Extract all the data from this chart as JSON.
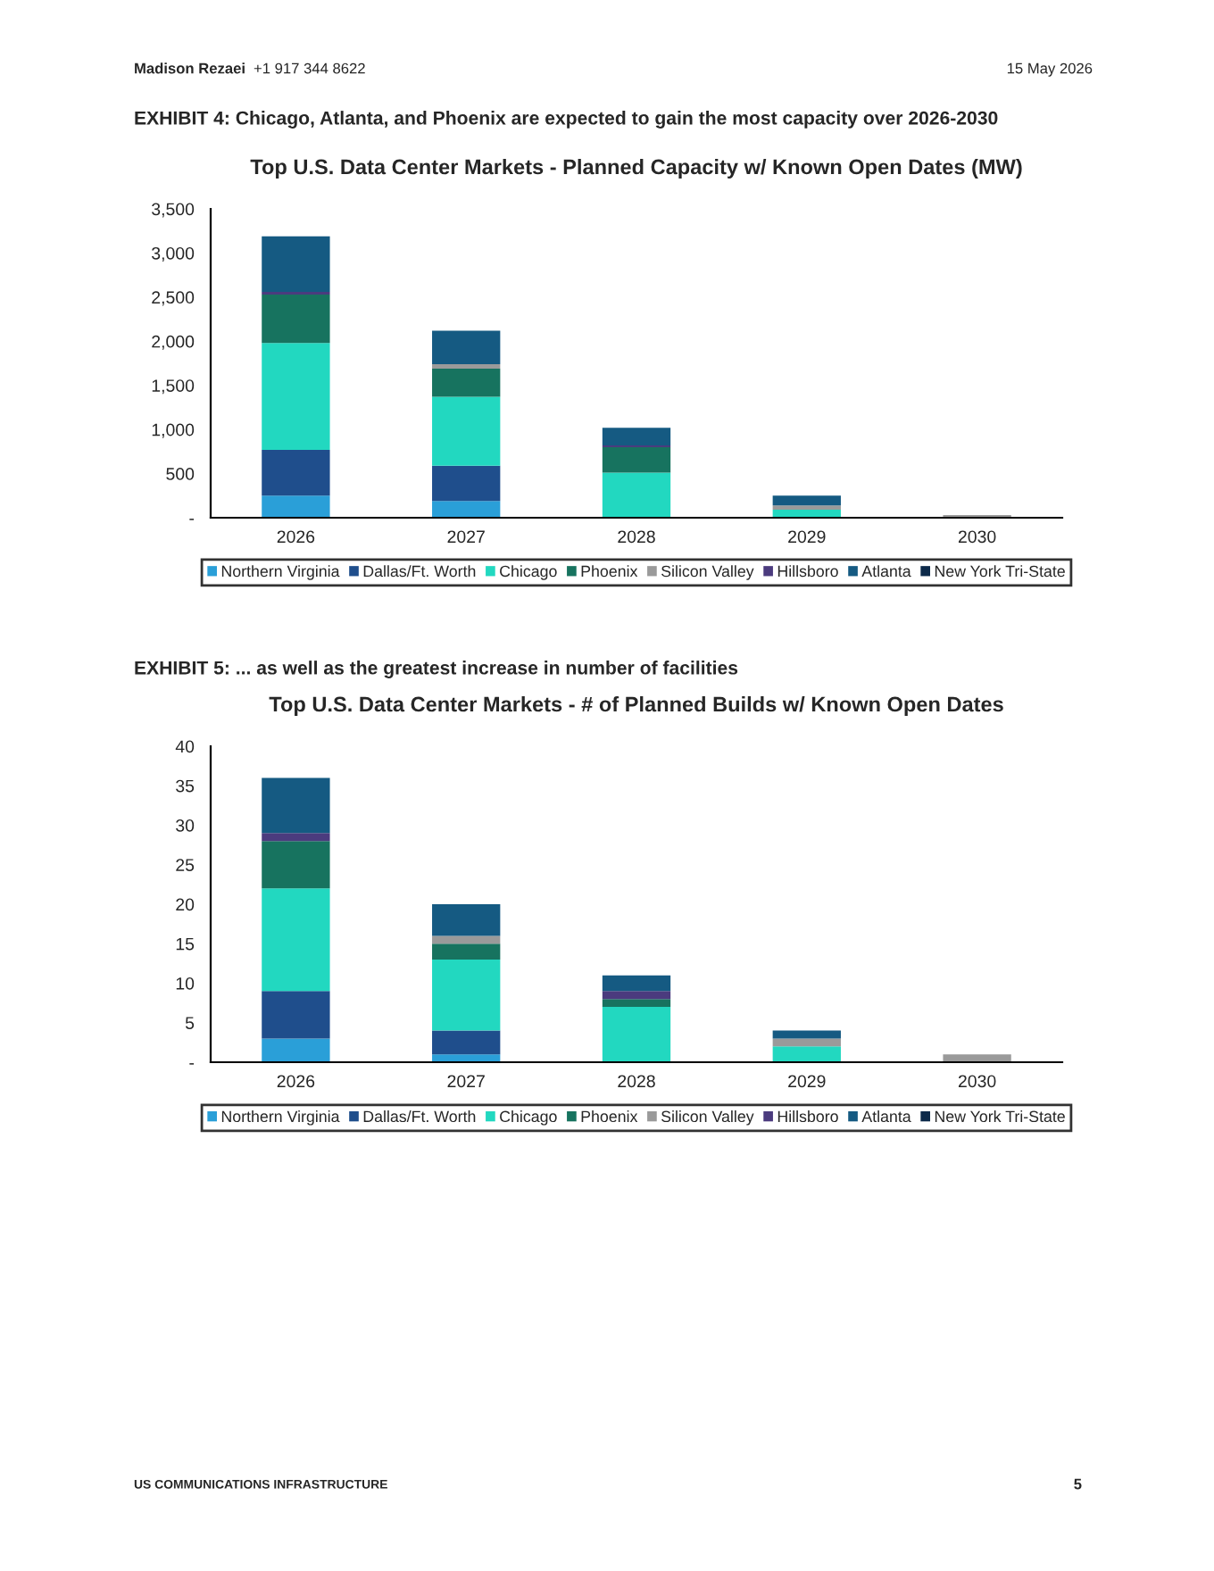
{
  "chart_data": [
    {
      "type": "bar",
      "stacked": true,
      "title": "Top U.S. Data Center Markets - Planned Capacity w/ Known Open Dates (MW)",
      "annotations": [
        "Madison Rezaei",
        "+1 917 344 8622",
        "15 May 2026",
        "EXHIBIT 4: Chicago, Atlanta, and Phoenix are expected to gain the most capacity over 2026-2030"
      ],
      "categories": [
        "2026",
        "2027",
        "2028",
        "2029",
        "2030"
      ],
      "series": [
        {
          "name": "Northern Virginia",
          "color": "#2a9fd8",
          "values": [
            250,
            190,
            0,
            0,
            0
          ]
        },
        {
          "name": "Dallas/Ft. Worth",
          "color": "#1f4e8c",
          "values": [
            520,
            400,
            0,
            0,
            0
          ]
        },
        {
          "name": "Chicago",
          "color": "#22d8c0",
          "values": [
            1210,
            780,
            510,
            90,
            0
          ]
        },
        {
          "name": "Phoenix",
          "color": "#17735f",
          "values": [
            550,
            320,
            290,
            0,
            0
          ]
        },
        {
          "name": "Silicon Valley",
          "color": "#9a9a9a",
          "values": [
            0,
            50,
            0,
            50,
            30
          ]
        },
        {
          "name": "Hillsboro",
          "color": "#4b3b7e",
          "values": [
            30,
            0,
            20,
            0,
            0
          ]
        },
        {
          "name": "Atlanta",
          "color": "#155a82",
          "values": [
            630,
            380,
            200,
            110,
            0
          ]
        },
        {
          "name": "New York Tri-State",
          "color": "#0d2a4a",
          "values": [
            0,
            0,
            0,
            0,
            0
          ]
        }
      ],
      "ylim": [
        0,
        3500
      ],
      "yticks": [
        {
          "value": 0,
          "label": "-"
        },
        500,
        {
          "value": 1000,
          "label": "1,000"
        },
        {
          "value": 1500,
          "label": "1,500"
        },
        {
          "value": 2000,
          "label": "2,000"
        },
        {
          "value": 2500,
          "label": "2,500"
        },
        {
          "value": 3000,
          "label": "3,000"
        },
        {
          "value": 3500,
          "label": "3,500"
        }
      ],
      "grid": false,
      "legend": "bottom"
    },
    {
      "type": "bar",
      "stacked": true,
      "title": "Top U.S. Data Center Markets - # of Planned Builds w/ Known Open Dates",
      "annotations": [
        "EXHIBIT 5: ... as well as the greatest increase in number of facilities",
        "US COMMUNICATIONS INFRASTRUCTURE",
        "5"
      ],
      "categories": [
        "2026",
        "2027",
        "2028",
        "2029",
        "2030"
      ],
      "series": [
        {
          "name": "Northern Virginia",
          "color": "#2a9fd8",
          "values": [
            3,
            1,
            0,
            0,
            0
          ]
        },
        {
          "name": "Dallas/Ft. Worth",
          "color": "#1f4e8c",
          "values": [
            6,
            3,
            0,
            0,
            0
          ]
        },
        {
          "name": "Chicago",
          "color": "#22d8c0",
          "values": [
            13,
            9,
            7,
            2,
            0
          ]
        },
        {
          "name": "Phoenix",
          "color": "#17735f",
          "values": [
            6,
            2,
            1,
            0,
            0
          ]
        },
        {
          "name": "Silicon Valley",
          "color": "#9a9a9a",
          "values": [
            0,
            1,
            0,
            1,
            1
          ]
        },
        {
          "name": "Hillsboro",
          "color": "#4b3b7e",
          "values": [
            1,
            0,
            1,
            0,
            0
          ]
        },
        {
          "name": "Atlanta",
          "color": "#155a82",
          "values": [
            7,
            4,
            2,
            1,
            0
          ]
        },
        {
          "name": "New York Tri-State",
          "color": "#0d2a4a",
          "values": [
            0,
            0,
            0,
            0,
            0
          ]
        }
      ],
      "ylim": [
        0,
        40
      ],
      "yticks": [
        {
          "value": 0,
          "label": "-"
        },
        5,
        10,
        15,
        20,
        25,
        30,
        35,
        40
      ],
      "grid": false,
      "legend": "bottom"
    }
  ]
}
